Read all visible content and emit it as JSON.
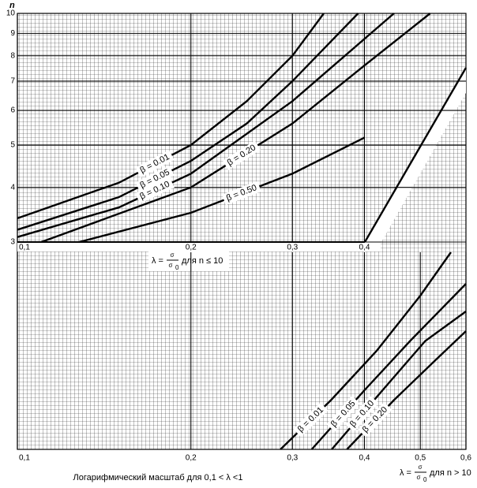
{
  "chart_data": [
    {
      "type": "line",
      "y_label": "n",
      "axis_label": {
        "lambda": "λ =",
        "num": "σ",
        "den": "σ",
        "sub": "0",
        "cond": "для n ≤ 10"
      },
      "xlim": [
        0.1,
        0.6
      ],
      "xticks": [
        {
          "value": 0.1,
          "label": "0,1"
        },
        {
          "value": 0.2,
          "label": "0,2"
        },
        {
          "value": 0.3,
          "label": "0,3"
        },
        {
          "value": 0.4,
          "label": "0,4"
        }
      ],
      "ylim": [
        3,
        10
      ],
      "log_x": true,
      "log_y": true,
      "yticks": [
        3,
        4,
        5,
        6,
        7,
        8,
        9,
        10
      ],
      "series": [
        {
          "name": "β = 0.01",
          "color": "#000000",
          "x": [
            0.1,
            0.15,
            0.2,
            0.25,
            0.3,
            0.34
          ],
          "values": [
            3.4,
            4.1,
            5.0,
            6.3,
            8.0,
            10
          ]
        },
        {
          "name": "β = 0.05",
          "color": "#000000",
          "x": [
            0.1,
            0.15,
            0.2,
            0.25,
            0.3,
            0.39
          ],
          "values": [
            3.2,
            3.8,
            4.6,
            5.6,
            7.0,
            10
          ]
        },
        {
          "name": "β = 0.10",
          "color": "#000000",
          "x": [
            0.1,
            0.15,
            0.2,
            0.3,
            0.45
          ],
          "values": [
            3.08,
            3.6,
            4.3,
            6.3,
            10
          ]
        },
        {
          "name": "β = 0.20",
          "color": "#000000",
          "x": [
            0.11,
            0.2,
            0.3,
            0.4,
            0.52
          ],
          "values": [
            3,
            4.0,
            5.6,
            7.6,
            10
          ]
        },
        {
          "name": "β = 0.50",
          "color": "#000000",
          "x": [
            0.128,
            0.2,
            0.3,
            0.4
          ],
          "values": [
            3,
            3.5,
            4.3,
            5.2
          ]
        }
      ]
    },
    {
      "type": "line",
      "x_label": "Логарифмический масштаб для 0,1 < λ <1",
      "axis_label": {
        "lambda": "λ =",
        "num": "σ",
        "den": "σ",
        "sub": "0",
        "cond": "для n > 10"
      },
      "xlim": [
        0.1,
        0.6
      ],
      "log_x": true,
      "xticks": [
        {
          "value": 0.1,
          "label": "0,1"
        },
        {
          "value": 0.2,
          "label": "0,2"
        },
        {
          "value": 0.3,
          "label": "0,3"
        },
        {
          "value": 0.4,
          "label": "0,4"
        },
        {
          "value": 0.5,
          "label": "0,5"
        },
        {
          "value": 0.6,
          "label": "0,6"
        }
      ],
      "ylim": [
        0,
        1
      ],
      "series": [
        {
          "name": "β = 0.01",
          "color": "#000000",
          "x": [
            0.286,
            0.35,
            0.42,
            0.5,
            0.565
          ],
          "values": [
            0,
            0.25,
            0.5,
            0.78,
            1
          ]
        },
        {
          "name": "β = 0.05",
          "color": "#000000",
          "x": [
            0.324,
            0.4,
            0.48,
            0.6
          ],
          "values": [
            0,
            0.3,
            0.55,
            0.84
          ]
        },
        {
          "name": "β = 0.10",
          "color": "#000000",
          "x": [
            0.351,
            0.43,
            0.51,
            0.6
          ],
          "values": [
            0,
            0.3,
            0.55,
            0.7
          ]
        },
        {
          "name": "β = 0.20",
          "color": "#000000",
          "x": [
            0.373,
            0.45,
            0.53,
            0.6
          ],
          "values": [
            0,
            0.25,
            0.45,
            0.6
          ]
        }
      ]
    }
  ]
}
